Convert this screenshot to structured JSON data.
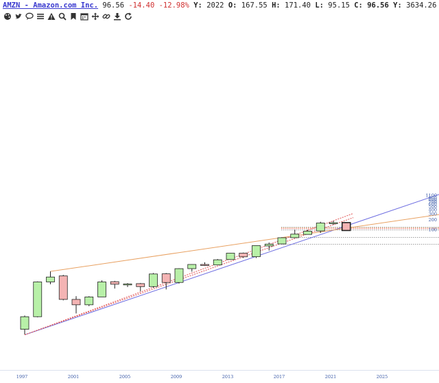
{
  "header": {
    "symbol": "AMZN - Amazon.com Inc.",
    "last": "96.56",
    "change": "-14.40",
    "change_pct": "-12.98%",
    "y_label": "Y:",
    "y_value": "2022",
    "o_label": "O:",
    "o_value": "167.55",
    "h_label": "H:",
    "h_value": "171.40",
    "l_label": "L:",
    "l_value": "95.15",
    "c_label": "C:",
    "c_value": "96.56",
    "y2_label": "Y:",
    "y2_value": "3634.26"
  },
  "toolbar": {
    "icons": [
      "palette-icon",
      "twitter-icon",
      "comment-icon",
      "list-icon",
      "alert-icon",
      "search-icon",
      "bookmark-icon",
      "calendar-icon",
      "move-icon",
      "link-icon",
      "download-icon",
      "refresh-icon"
    ]
  },
  "colors": {
    "up_fill": "#b8f0a8",
    "down_fill": "#f4b4b4",
    "candle_edge": "#222222",
    "trend_blue": "#6a6ae0",
    "trend_orange": "#e8a060",
    "trend_red": "#e05050",
    "hline_gray": "#909090",
    "hline_orange": "#e8a060",
    "hline_red": "#e06060",
    "axis_text": "#3a5aa8"
  },
  "chart_data": {
    "type": "candlestick",
    "title": "AMZN - Amazon.com Inc.",
    "interval": "yearly",
    "y_scale": "log",
    "ylim": [
      0.06,
      1100
    ],
    "y_ticks": [
      1100,
      900,
      800,
      700,
      600,
      500,
      400,
      300,
      200,
      100
    ],
    "x_ticks": [
      "1997",
      "2001",
      "2005",
      "2009",
      "2013",
      "2017",
      "2021",
      "2025"
    ],
    "candles": [
      {
        "year": 1997,
        "open": 0.1,
        "high": 0.26,
        "low": 0.07,
        "close": 0.24,
        "dir": "up"
      },
      {
        "year": 1998,
        "open": 0.24,
        "high": 2.8,
        "low": 0.23,
        "close": 2.7,
        "dir": "up"
      },
      {
        "year": 1999,
        "open": 2.7,
        "high": 5.6,
        "low": 2.3,
        "close": 3.8,
        "dir": "up"
      },
      {
        "year": 2000,
        "open": 4.1,
        "high": 4.4,
        "low": 0.75,
        "close": 0.8,
        "dir": "down"
      },
      {
        "year": 2001,
        "open": 0.8,
        "high": 1.0,
        "low": 0.3,
        "close": 0.55,
        "dir": "down"
      },
      {
        "year": 2002,
        "open": 0.55,
        "high": 1.0,
        "low": 0.5,
        "close": 0.95,
        "dir": "up"
      },
      {
        "year": 2003,
        "open": 0.95,
        "high": 3.0,
        "low": 0.95,
        "close": 2.7,
        "dir": "up"
      },
      {
        "year": 2004,
        "open": 2.75,
        "high": 2.9,
        "low": 1.7,
        "close": 2.3,
        "dir": "down"
      },
      {
        "year": 2005,
        "open": 2.25,
        "high": 2.5,
        "low": 1.9,
        "close": 2.35,
        "dir": "up"
      },
      {
        "year": 2006,
        "open": 2.4,
        "high": 2.5,
        "low": 1.4,
        "close": 1.95,
        "dir": "down"
      },
      {
        "year": 2007,
        "open": 1.95,
        "high": 5.0,
        "low": 1.8,
        "close": 4.7,
        "dir": "up"
      },
      {
        "year": 2008,
        "open": 4.75,
        "high": 5.0,
        "low": 1.6,
        "close": 2.6,
        "dir": "down"
      },
      {
        "year": 2009,
        "open": 2.6,
        "high": 7.0,
        "low": 2.4,
        "close": 6.8,
        "dir": "up"
      },
      {
        "year": 2010,
        "open": 6.8,
        "high": 9.2,
        "low": 5.5,
        "close": 9.1,
        "dir": "up"
      },
      {
        "year": 2011,
        "open": 9.1,
        "high": 10.6,
        "low": 8.2,
        "close": 8.7,
        "dir": "down"
      },
      {
        "year": 2012,
        "open": 8.8,
        "high": 13.3,
        "low": 8.8,
        "close": 12.6,
        "dir": "up"
      },
      {
        "year": 2013,
        "open": 12.8,
        "high": 20.3,
        "low": 12.6,
        "close": 20.0,
        "dir": "up"
      },
      {
        "year": 2014,
        "open": 20.0,
        "high": 20.8,
        "low": 14.3,
        "close": 15.5,
        "dir": "down"
      },
      {
        "year": 2015,
        "open": 15.6,
        "high": 34.0,
        "low": 14.2,
        "close": 33.8,
        "dir": "up"
      },
      {
        "year": 2016,
        "open": 33.0,
        "high": 42.0,
        "low": 24.0,
        "close": 37.5,
        "dir": "up"
      },
      {
        "year": 2017,
        "open": 37.9,
        "high": 59.8,
        "low": 37.6,
        "close": 58.5,
        "dir": "up"
      },
      {
        "year": 2018,
        "open": 58.6,
        "high": 101.8,
        "low": 57.0,
        "close": 75.1,
        "dir": "up"
      },
      {
        "year": 2019,
        "open": 73.3,
        "high": 101.8,
        "low": 73.0,
        "close": 92.4,
        "dir": "up"
      },
      {
        "year": 2020,
        "open": 93.7,
        "high": 177.6,
        "low": 81.3,
        "close": 162.8,
        "dir": "up"
      },
      {
        "year": 2021,
        "open": 163.5,
        "high": 188.7,
        "low": 144.1,
        "close": 166.7,
        "dir": "up"
      },
      {
        "year": 2022,
        "open": 167.55,
        "high": 171.4,
        "low": 95.15,
        "close": 96.56,
        "dir": "down"
      }
    ]
  }
}
